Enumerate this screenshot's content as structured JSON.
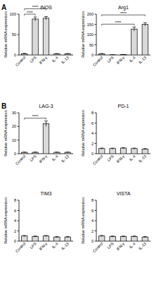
{
  "chart_data": [
    {
      "type": "bar",
      "panel": "A",
      "title": "iNOS",
      "y_label": "Relative mRNA expression",
      "categories": [
        "Control",
        "LPS",
        "IFN-γ",
        "IL-4",
        "IL-13"
      ],
      "values": [
        3,
        88,
        90,
        3,
        3
      ],
      "errors": [
        1,
        5,
        4,
        0.5,
        0.5
      ],
      "color": "#d9d9d9",
      "ylim": [
        0,
        100
      ],
      "yticks": [
        0,
        50,
        100
      ],
      "grid": false,
      "significance": [
        {
          "between": [
            "Control",
            "LPS"
          ],
          "label": "****"
        },
        {
          "between": [
            "Control",
            "IFN-γ"
          ],
          "label": "****"
        }
      ]
    },
    {
      "type": "bar",
      "title": "Arg1",
      "y_label": "Relative mRNA expression",
      "categories": [
        "Control",
        "LPS",
        "IFN-γ",
        "IL-4",
        "IL-13"
      ],
      "values": [
        5,
        1,
        2,
        127,
        150
      ],
      "errors": [
        2,
        0.5,
        0.5,
        10,
        8
      ],
      "color": "#d9d9d9",
      "ylim": [
        0,
        200
      ],
      "yticks": [
        0,
        50,
        100,
        150,
        200
      ],
      "grid": false,
      "significance": [
        {
          "between": [
            "Control",
            "IL-4"
          ],
          "label": "****"
        },
        {
          "between": [
            "Control",
            "IL-13"
          ],
          "label": "****"
        }
      ]
    },
    {
      "type": "bar",
      "panel": "B",
      "title": "LAG-3",
      "y_label": "Relative mRNA expression",
      "categories": [
        "Control",
        "LPS",
        "IFN-γ",
        "IL-4",
        "IL-13"
      ],
      "values": [
        1,
        1,
        22,
        1,
        1
      ],
      "errors": [
        0.2,
        0.2,
        2,
        0.2,
        0.2
      ],
      "color": "#d9d9d9",
      "ylim": [
        0,
        30
      ],
      "yticks": [
        0,
        10,
        20,
        30
      ],
      "grid": false,
      "significance": [
        {
          "between": [
            "Control",
            "IFN-γ"
          ],
          "label": "****"
        }
      ]
    },
    {
      "type": "bar",
      "title": "PD-1",
      "y_label": "Relative mRNA expression",
      "categories": [
        "Control",
        "LPS",
        "IFN-γ",
        "IL-4",
        "IL-13"
      ],
      "values": [
        1,
        1,
        1.1,
        1,
        0.9
      ],
      "errors": [
        0.1,
        0.1,
        0.1,
        0.1,
        0.1
      ],
      "color": "#d9d9d9",
      "ylim": [
        0,
        8
      ],
      "yticks": [
        0,
        2,
        4,
        6,
        8
      ],
      "grid": false
    },
    {
      "type": "bar",
      "title": "TIM3",
      "y_label": "Relative mRNA expression",
      "categories": [
        "Control",
        "LPS",
        "IFN-γ",
        "IL-4",
        "IL-13"
      ],
      "values": [
        1,
        0.9,
        1,
        0.8,
        0.8
      ],
      "errors": [
        0.1,
        0.1,
        0.1,
        0.1,
        0.1
      ],
      "color": "#d9d9d9",
      "ylim": [
        0,
        8
      ],
      "yticks": [
        0,
        2,
        4,
        6,
        8
      ],
      "grid": false
    },
    {
      "type": "bar",
      "title": "VISTA",
      "y_label": "Relative mRNA expression",
      "categories": [
        "Control",
        "LPS",
        "IFN-γ",
        "IL-4",
        "IL-13"
      ],
      "values": [
        1,
        0.9,
        0.9,
        0.9,
        0.8
      ],
      "errors": [
        0.1,
        0.1,
        0.1,
        0.1,
        0.1
      ],
      "color": "#d9d9d9",
      "ylim": [
        0,
        8
      ],
      "yticks": [
        0,
        2,
        4,
        6,
        8
      ],
      "grid": false
    }
  ]
}
